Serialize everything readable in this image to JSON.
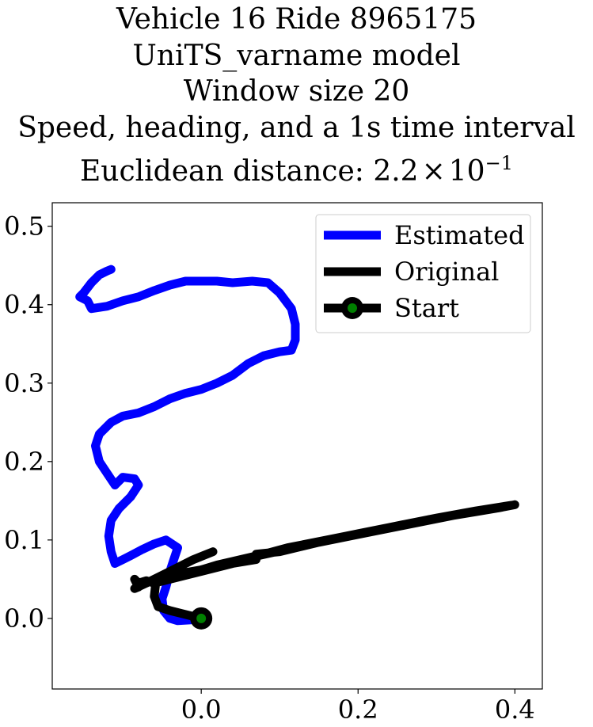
{
  "title": {
    "line1": "Vehicle 16 Ride 8965175",
    "line2": "UniTS_varname model",
    "line3": "Window size 20",
    "line4": "Speed, heading, and a 1s time interval",
    "line5_prefix": "Euclidean distance: ",
    "line5_mantissa": "2.2",
    "line5_times": "×",
    "line5_base": "10",
    "line5_exp": "−1"
  },
  "chart_data": {
    "type": "line",
    "xlim": [
      -0.19,
      0.435
    ],
    "ylim": [
      -0.09,
      0.53
    ],
    "x_ticks": [
      0.0,
      0.2,
      0.4
    ],
    "x_tick_labels": [
      "0.0",
      "0.2",
      "0.4"
    ],
    "y_ticks": [
      0.0,
      0.1,
      0.2,
      0.3,
      0.4,
      0.5
    ],
    "y_tick_labels": [
      "0.0",
      "0.1",
      "0.2",
      "0.3",
      "0.4",
      "0.5"
    ],
    "grid": false,
    "legend_position": "top-right",
    "series": [
      {
        "name": "Estimated",
        "color": "#0000ff",
        "points": [
          [
            0.0,
            0.0
          ],
          [
            -0.015,
            -0.002
          ],
          [
            -0.03,
            -0.003
          ],
          [
            -0.04,
            0.0
          ],
          [
            -0.048,
            0.01
          ],
          [
            -0.05,
            0.025
          ],
          [
            -0.045,
            0.04
          ],
          [
            -0.04,
            0.06
          ],
          [
            -0.035,
            0.075
          ],
          [
            -0.03,
            0.09
          ],
          [
            -0.045,
            0.1
          ],
          [
            -0.06,
            0.095
          ],
          [
            -0.075,
            0.088
          ],
          [
            -0.09,
            0.08
          ],
          [
            -0.1,
            0.075
          ],
          [
            -0.11,
            0.07
          ],
          [
            -0.115,
            0.085
          ],
          [
            -0.118,
            0.105
          ],
          [
            -0.115,
            0.125
          ],
          [
            -0.105,
            0.14
          ],
          [
            -0.09,
            0.155
          ],
          [
            -0.08,
            0.17
          ],
          [
            -0.085,
            0.178
          ],
          [
            -0.1,
            0.18
          ],
          [
            -0.11,
            0.17
          ],
          [
            -0.12,
            0.185
          ],
          [
            -0.13,
            0.2
          ],
          [
            -0.135,
            0.22
          ],
          [
            -0.13,
            0.235
          ],
          [
            -0.115,
            0.25
          ],
          [
            -0.1,
            0.258
          ],
          [
            -0.08,
            0.262
          ],
          [
            -0.06,
            0.27
          ],
          [
            -0.04,
            0.28
          ],
          [
            -0.02,
            0.287
          ],
          [
            0.0,
            0.292
          ],
          [
            0.02,
            0.3
          ],
          [
            0.04,
            0.31
          ],
          [
            0.06,
            0.325
          ],
          [
            0.08,
            0.335
          ],
          [
            0.1,
            0.34
          ],
          [
            0.115,
            0.342
          ],
          [
            0.12,
            0.355
          ],
          [
            0.12,
            0.375
          ],
          [
            0.115,
            0.395
          ],
          [
            0.1,
            0.415
          ],
          [
            0.085,
            0.428
          ],
          [
            0.065,
            0.43
          ],
          [
            0.04,
            0.428
          ],
          [
            0.02,
            0.43
          ],
          [
            0.0,
            0.43
          ],
          [
            -0.02,
            0.43
          ],
          [
            -0.04,
            0.425
          ],
          [
            -0.06,
            0.418
          ],
          [
            -0.08,
            0.41
          ],
          [
            -0.1,
            0.405
          ],
          [
            -0.12,
            0.398
          ],
          [
            -0.14,
            0.395
          ],
          [
            -0.145,
            0.405
          ],
          [
            -0.155,
            0.41
          ],
          [
            -0.15,
            0.415
          ],
          [
            -0.14,
            0.428
          ],
          [
            -0.13,
            0.438
          ],
          [
            -0.12,
            0.443
          ],
          [
            -0.115,
            0.445
          ]
        ]
      },
      {
        "name": "Original",
        "color": "#000000",
        "points": [
          [
            0.0,
            0.0
          ],
          [
            -0.02,
            0.005
          ],
          [
            -0.04,
            0.01
          ],
          [
            -0.055,
            0.015
          ],
          [
            -0.06,
            0.028
          ],
          [
            -0.058,
            0.045
          ],
          [
            -0.045,
            0.05
          ],
          [
            -0.02,
            0.055
          ],
          [
            0.0,
            0.062
          ],
          [
            0.02,
            0.068
          ],
          [
            0.05,
            0.075
          ],
          [
            0.08,
            0.082
          ],
          [
            0.11,
            0.09
          ],
          [
            0.14,
            0.096
          ],
          [
            0.17,
            0.102
          ],
          [
            0.2,
            0.108
          ],
          [
            0.23,
            0.114
          ],
          [
            0.26,
            0.12
          ],
          [
            0.29,
            0.126
          ],
          [
            0.32,
            0.131
          ],
          [
            0.35,
            0.136
          ],
          [
            0.38,
            0.141
          ],
          [
            0.4,
            0.145
          ],
          [
            0.35,
            0.137
          ],
          [
            0.3,
            0.127
          ],
          [
            0.25,
            0.117
          ],
          [
            0.2,
            0.107
          ],
          [
            0.15,
            0.097
          ],
          [
            0.1,
            0.085
          ],
          [
            0.07,
            0.082
          ],
          [
            0.07,
            0.075
          ],
          [
            0.04,
            0.07
          ],
          [
            0.0,
            0.06
          ],
          [
            -0.04,
            0.05
          ],
          [
            -0.06,
            0.045
          ],
          [
            -0.07,
            0.048
          ],
          [
            -0.08,
            0.045
          ],
          [
            -0.085,
            0.05
          ],
          [
            -0.08,
            0.04
          ],
          [
            -0.085,
            0.038
          ],
          [
            -0.07,
            0.045
          ],
          [
            -0.04,
            0.06
          ],
          [
            -0.01,
            0.075
          ],
          [
            0.015,
            0.085
          ],
          [
            -0.01,
            0.075
          ],
          [
            -0.04,
            0.06
          ],
          [
            -0.06,
            0.05
          ],
          [
            -0.04,
            0.055
          ],
          [
            0.0,
            0.062
          ],
          [
            0.05,
            0.075
          ],
          [
            0.1,
            0.086
          ],
          [
            0.15,
            0.097
          ],
          [
            0.2,
            0.108
          ],
          [
            0.25,
            0.118
          ],
          [
            0.3,
            0.128
          ],
          [
            0.35,
            0.137
          ],
          [
            0.4,
            0.145
          ]
        ]
      }
    ],
    "start": {
      "name": "Start",
      "point": [
        0.0,
        0.0
      ],
      "marker_color": "#008000",
      "edge_color": "#000000"
    }
  }
}
